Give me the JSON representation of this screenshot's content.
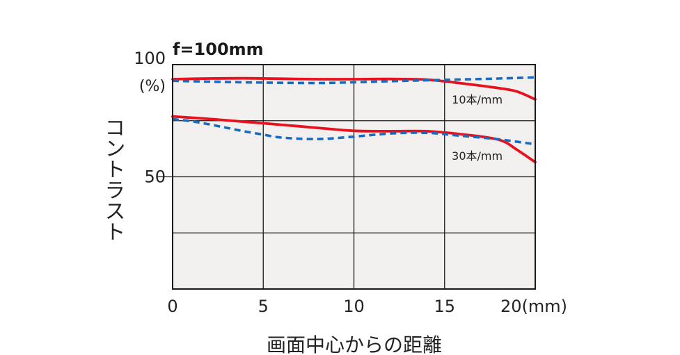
{
  "chart_data": {
    "type": "line",
    "title": "f=100mm",
    "xlabel": "画面中心からの距離",
    "ylabel": "コントラスト",
    "y_unit_label": "(%)",
    "x_unit_suffix": "(mm)",
    "xlim": [
      0,
      20
    ],
    "ylim": [
      0,
      100
    ],
    "x_ticks": [
      0,
      5,
      10,
      15,
      20
    ],
    "x_tick_labels": [
      "0",
      "5",
      "10",
      "15",
      "20(mm)"
    ],
    "y_ticks": [
      100,
      50
    ],
    "y_tick_labels": [
      "100",
      "50"
    ],
    "grid": true,
    "background": "#f1f0ee",
    "series": [
      {
        "name": "10本/mm",
        "style": "solid",
        "color": "#e8121e",
        "x": [
          0,
          2,
          4,
          6,
          8,
          10,
          12,
          14,
          16,
          18,
          19,
          20
        ],
        "y": [
          93.5,
          93.8,
          93.9,
          93.7,
          93.5,
          93.5,
          93.6,
          93.3,
          91.6,
          89.5,
          88,
          84.5
        ]
      },
      {
        "name": "10本/mm",
        "style": "dashed",
        "color": "#1a6bbf",
        "x": [
          0,
          2,
          4,
          6,
          8,
          10,
          12,
          14,
          16,
          18,
          20
        ],
        "y": [
          92.8,
          92.4,
          92.1,
          91.9,
          91.8,
          92.1,
          92.6,
          93,
          93.4,
          93.8,
          94.3
        ]
      },
      {
        "name": "30本/mm",
        "style": "solid",
        "color": "#e8121e",
        "x": [
          0,
          2,
          4,
          6,
          8,
          10,
          12,
          14,
          16,
          18,
          19,
          20
        ],
        "y": [
          76.9,
          75.8,
          74.5,
          73.2,
          71.8,
          70.5,
          70.3,
          70.3,
          68.9,
          66.5,
          62,
          56.5
        ]
      },
      {
        "name": "30本/mm",
        "style": "dashed",
        "color": "#1a6bbf",
        "x": [
          0,
          1,
          2,
          3,
          4,
          5,
          6,
          8,
          10,
          12,
          14,
          16,
          18,
          20
        ],
        "y": [
          75.7,
          74.8,
          73.4,
          71.8,
          70.2,
          68.8,
          67.5,
          66.8,
          67.9,
          69.3,
          69.6,
          68.2,
          66.7,
          64.5
        ]
      }
    ],
    "annotations": [
      {
        "text": "10本/mm",
        "x": 15.4,
        "y": 84.5
      },
      {
        "text": "30本/mm",
        "x": 15.4,
        "y": 59.5
      }
    ]
  }
}
